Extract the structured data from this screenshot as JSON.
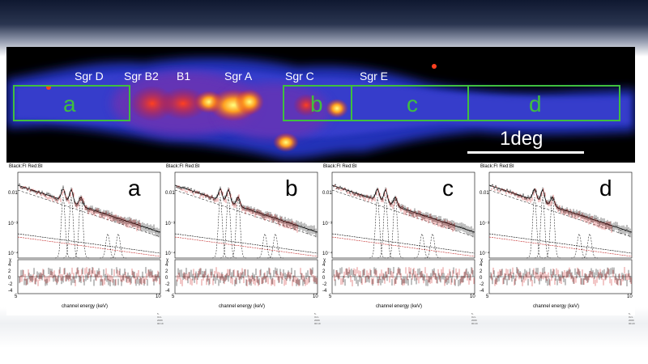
{
  "map": {
    "labels": [
      "Sgr D",
      "Sgr B2",
      "B1",
      "Sgr A",
      "Sgr C",
      "Sgr E"
    ],
    "regions": [
      "a",
      "b",
      "c",
      "d"
    ],
    "scale_label": "1deg"
  },
  "panels": [
    {
      "title": "Black:FI Red:BI",
      "letter": "a",
      "xlabel": "channel energy (keV)",
      "x_ticks": [
        "5",
        "10"
      ],
      "y_ticks": [
        "0.01",
        "10⁻³",
        "10⁻⁴"
      ],
      "resid_ticks": [
        "-4",
        "-2",
        "0",
        "2",
        "4"
      ],
      "resid_label": "χ",
      "stamp": "5-Oct-2009 00:19"
    },
    {
      "title": "Black:FI Red:BI",
      "letter": "b",
      "xlabel": "channel energy (keV)",
      "x_ticks": [
        "5",
        "10"
      ],
      "y_ticks": [
        "0.01",
        "10⁻³",
        "10⁻⁴"
      ],
      "resid_ticks": [
        "-4",
        "-2",
        "0",
        "2",
        "4"
      ],
      "resid_label": "χ",
      "stamp": "5-Oct-2009 00:19"
    },
    {
      "title": "Black:FI Red:BI",
      "letter": "c",
      "xlabel": "channel energy (keV)",
      "x_ticks": [
        "5",
        "10"
      ],
      "y_ticks": [
        "0.01",
        "10⁻³",
        "10⁻⁴"
      ],
      "resid_ticks": [
        "-4",
        "-2",
        "0",
        "2",
        "4"
      ],
      "resid_label": "χ",
      "stamp": "5-Oct-2009 00:20"
    },
    {
      "title": "Black:FI Red:BI",
      "letter": "d",
      "xlabel": "channel energy (keV)",
      "x_ticks": [
        "5",
        "10"
      ],
      "y_ticks": [
        "0.01",
        "10⁻³",
        "10⁻⁴"
      ],
      "resid_ticks": [
        "-4",
        "-2",
        "0",
        "2",
        "4"
      ],
      "resid_label": "χ",
      "stamp": "5-Oct-2009 00:20"
    }
  ],
  "colors": {
    "region_box": "#3fbf3f",
    "series_fi": "#000000",
    "series_bi": "#cc2020",
    "map_bg": "#000000"
  }
}
